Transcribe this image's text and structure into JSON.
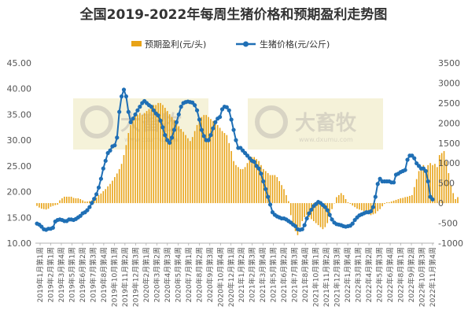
{
  "chart_data": {
    "type": "bar+line",
    "title": "全国2019-2022年每周生猪价格和预期盈利走势图",
    "legend_position": "top",
    "grid": false,
    "watermark": {
      "text": "大畜牧",
      "subtext": "www.dxumu.com"
    },
    "colors": {
      "bars": "#E8A317",
      "line": "#1F6FB5"
    },
    "left_axis": {
      "ylim": [
        10,
        45
      ],
      "ticks": [
        "10.00",
        "15.00",
        "20.00",
        "25.00",
        "30.00",
        "35.00",
        "40.00",
        "45.00"
      ]
    },
    "right_axis": {
      "ylim": [
        -1000,
        3500
      ],
      "ticks": [
        "-1000",
        "-500",
        "0",
        "500",
        "1000",
        "1500",
        "2000",
        "2500",
        "3000",
        "3500"
      ]
    },
    "x_labels": [
      "2019年1月第1周",
      "2019年2月第1周",
      "2019年3月第4周",
      "2019年5月第1周",
      "2019年6月第2周",
      "2019年7月第3周",
      "2019年8月第4周",
      "2019年10月第1周",
      "2019年11月第2周",
      "2019年12月第3周",
      "2020年2月第1周",
      "2020年3月第2周",
      "2020年4月第3周",
      "2020年5月第4周",
      "2020年7月第1周",
      "2020年8月第2周",
      "2020年9月第3周",
      "2020年10月第4周",
      "2020年12月第1周",
      "2021年1月第2周",
      "2021年2月第3周",
      "2021年3月第4周",
      "2021年5月第1周",
      "2021年6月第2周",
      "2021年7月第3周",
      "2021年8月第4周",
      "2021年10月第1周",
      "2021年11月第2周",
      "2021年12月第3周",
      "2022年1月第4周",
      "2022年3月第1周",
      "2022年4月第2周",
      "2022年5月第3周",
      "2022年6月第4周",
      "2022年8月第1周",
      "2022年9月第2周",
      "2022年10月第3周",
      "2022年11月第4周"
    ],
    "series": [
      {
        "name": "预期盈利(元/头)",
        "axis": "right",
        "type": "bar",
        "values": [
          -70,
          -110,
          -140,
          -150,
          -160,
          -140,
          -90,
          -70,
          -50,
          -40,
          70,
          120,
          160,
          160,
          160,
          160,
          130,
          120,
          120,
          100,
          70,
          40,
          40,
          50,
          70,
          100,
          140,
          200,
          240,
          300,
          350,
          420,
          480,
          560,
          650,
          740,
          850,
          980,
          1200,
          1450,
          1750,
          1950,
          2100,
          2250,
          2200,
          2250,
          2200,
          2250,
          2300,
          2350,
          2400,
          2450,
          2450,
          2500,
          2500,
          2450,
          2380,
          2300,
          2220,
          2150,
          2080,
          2000,
          1920,
          1850,
          1780,
          1700,
          1620,
          1550,
          1650,
          1800,
          1950,
          2050,
          2150,
          2200,
          2200,
          2150,
          2100,
          2050,
          2000,
          1950,
          1880,
          1800,
          1750,
          1700,
          1500,
          1300,
          1050,
          950,
          900,
          850,
          850,
          900,
          1000,
          1100,
          1150,
          1150,
          1100,
          1050,
          950,
          850,
          800,
          750,
          700,
          700,
          700,
          650,
          550,
          450,
          350,
          200,
          50,
          -300,
          -500,
          -700,
          -800,
          -600,
          -450,
          -350,
          -300,
          -350,
          -400,
          -450,
          -500,
          -550,
          -600,
          -650,
          -600,
          -500,
          -350,
          -150,
          0,
          150,
          200,
          250,
          200,
          100,
          20,
          -20,
          -60,
          -100,
          -140,
          -160,
          -180,
          -200,
          -230,
          -260,
          -300,
          -280,
          -260,
          -200,
          -150,
          -80,
          -20,
          20,
          20,
          40,
          60,
          80,
          100,
          120,
          130,
          150,
          160,
          180,
          200,
          400,
          600,
          800,
          900,
          950,
          850,
          950,
          1000,
          950,
          980,
          900,
          1200,
          1250,
          1300,
          1050,
          750,
          450,
          250,
          100,
          150
        ]
      },
      {
        "name": "生猪价格(元/公斤)",
        "axis": "left",
        "type": "line",
        "values": [
          13.8,
          13.6,
          13.2,
          12.7,
          12.6,
          12.8,
          12.8,
          13.0,
          14.2,
          14.5,
          14.6,
          14.5,
          14.3,
          14.3,
          14.6,
          14.6,
          14.5,
          14.7,
          15.0,
          15.3,
          15.8,
          16.0,
          16.4,
          17.0,
          17.8,
          18.6,
          19.5,
          20.8,
          22.5,
          24.5,
          26.0,
          27.5,
          28.0,
          28.8,
          29.0,
          30.5,
          35.5,
          38.5,
          39.8,
          38.5,
          35.5,
          33.5,
          34.2,
          35.0,
          35.8,
          36.5,
          37.2,
          37.6,
          37.2,
          36.8,
          36.5,
          35.8,
          35.2,
          34.8,
          33.8,
          32.5,
          31.0,
          30.0,
          29.5,
          30.5,
          32.0,
          33.5,
          35.0,
          36.5,
          37.2,
          37.4,
          37.5,
          37.4,
          37.3,
          36.8,
          35.8,
          34.0,
          32.0,
          30.8,
          30.0,
          30.0,
          31.0,
          32.3,
          33.5,
          34.2,
          34.5,
          36.0,
          36.5,
          36.4,
          35.8,
          34.0,
          32.0,
          30.0,
          28.5,
          28.5,
          28.0,
          27.5,
          27.0,
          26.5,
          26.0,
          25.8,
          25.0,
          24.5,
          23.5,
          22.0,
          20.5,
          19.0,
          17.5,
          16.0,
          15.5,
          15.2,
          15.0,
          14.8,
          14.8,
          14.6,
          14.3,
          14.0,
          13.6,
          13.3,
          12.7,
          12.6,
          12.7,
          13.5,
          14.8,
          15.8,
          16.5,
          17.2,
          17.6,
          18.0,
          17.8,
          17.4,
          17.0,
          16.4,
          15.5,
          14.6,
          14.0,
          13.7,
          13.6,
          13.5,
          13.3,
          13.2,
          13.3,
          13.4,
          13.8,
          14.5,
          15.0,
          15.4,
          15.6,
          15.8,
          16.0,
          16.0,
          16.2,
          17.0,
          19.0,
          21.5,
          22.5,
          22.0,
          22.0,
          22.0,
          22.0,
          21.8,
          21.8,
          23.3,
          23.5,
          23.8,
          24.0,
          24.2,
          26.2,
          27.0,
          27.0,
          26.5,
          25.5,
          25.0,
          24.5,
          24.5,
          24.0,
          22.0,
          19.0,
          18.5
        ]
      }
    ]
  }
}
